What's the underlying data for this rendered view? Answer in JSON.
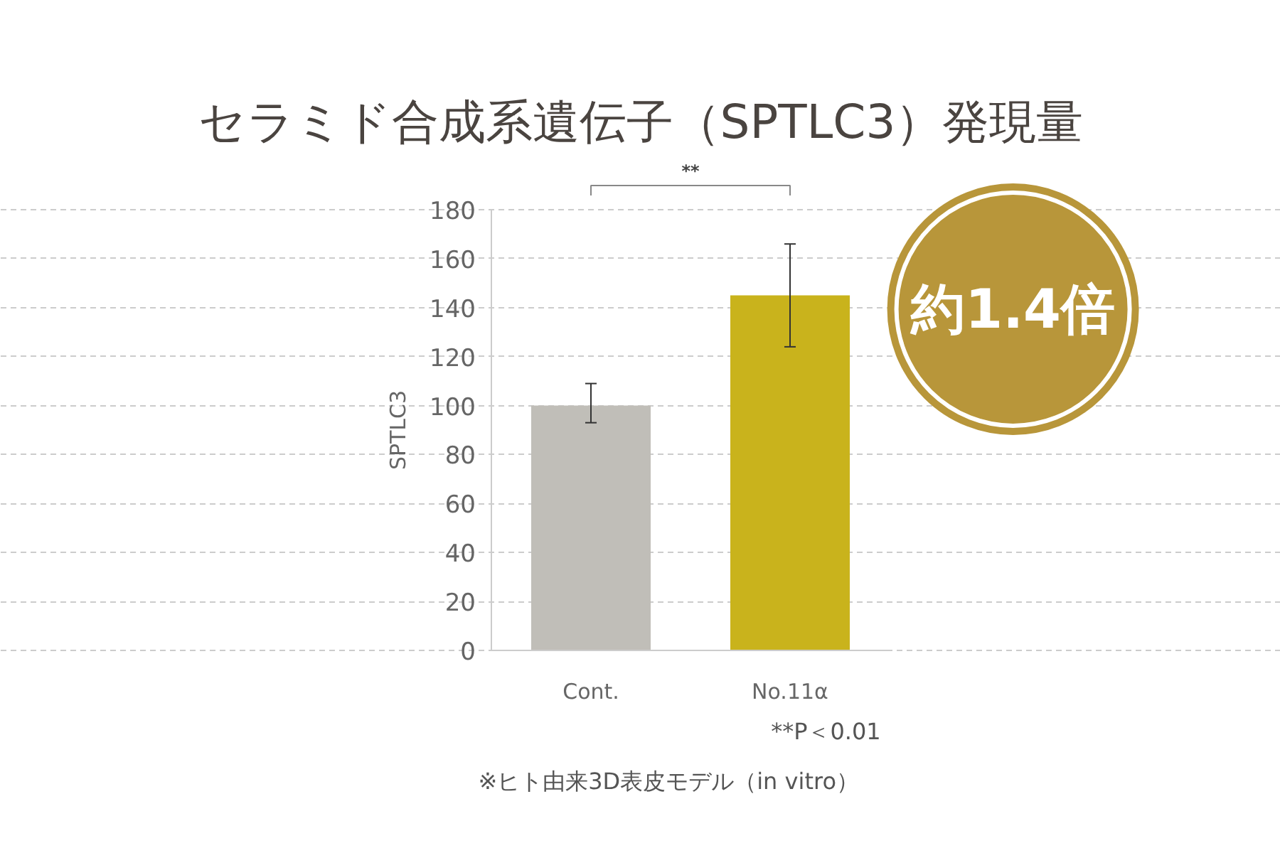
{
  "chart_data": {
    "type": "bar",
    "title": "セラミド合成系遺伝子（SPTLC3）発現量",
    "ylabel": "SPTLC3",
    "categories": [
      "Cont.",
      "No.11α"
    ],
    "values": [
      100,
      145
    ],
    "colors": [
      "#c0beb8",
      "#c9b31c"
    ],
    "errors": [
      [
        93,
        109
      ],
      [
        124,
        166
      ]
    ],
    "ylim": [
      0,
      180
    ],
    "yticks": [
      0,
      20,
      40,
      60,
      80,
      100,
      120,
      140,
      160,
      180
    ],
    "grid": "y",
    "annotations": [
      "**",
      "約1.4倍",
      "**P＜0.01",
      "※ヒト由来3D表皮モデル（in vitro）"
    ]
  }
}
